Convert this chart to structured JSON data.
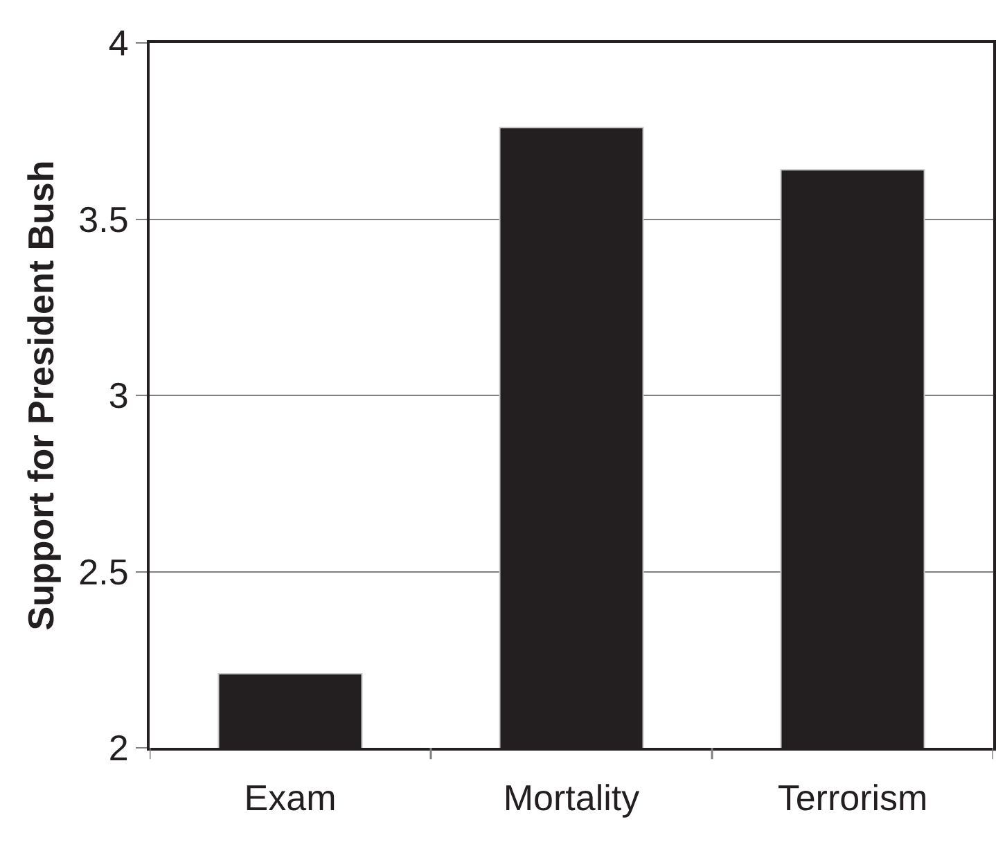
{
  "chart_data": {
    "type": "bar",
    "ylabel": "Support for President Bush",
    "categories": [
      "Exam",
      "Mortality",
      "Terrorism"
    ],
    "values": [
      2.21,
      3.76,
      3.64
    ],
    "color": "#231f20",
    "ylim": [
      2,
      4
    ],
    "yticks": [
      2,
      2.5,
      3,
      3.5,
      4
    ],
    "grid": "y"
  }
}
